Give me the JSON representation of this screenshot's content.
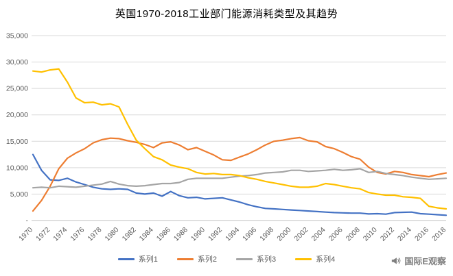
{
  "title": "英国1970-2018工业部门能源消耗类型及其趋势",
  "watermark": {
    "text": "国际E观察"
  },
  "chart_data": {
    "type": "line",
    "x": [
      1970,
      1971,
      1972,
      1973,
      1974,
      1975,
      1976,
      1977,
      1978,
      1979,
      1980,
      1981,
      1982,
      1983,
      1984,
      1985,
      1986,
      1987,
      1988,
      1989,
      1990,
      1991,
      1992,
      1993,
      1994,
      1995,
      1996,
      1997,
      1998,
      1999,
      2000,
      2001,
      2002,
      2003,
      2004,
      2005,
      2006,
      2007,
      2008,
      2009,
      2010,
      2011,
      2012,
      2013,
      2014,
      2015,
      2016,
      2017,
      2018
    ],
    "x_tick_labels": [
      "1970",
      "1972",
      "1974",
      "1976",
      "1978",
      "1980",
      "1982",
      "1984",
      "1986",
      "1988",
      "1990",
      "1992",
      "1994",
      "1996",
      "1998",
      "2000",
      "2002",
      "2004",
      "2006",
      "2008",
      "2010",
      "2012",
      "2014",
      "2016",
      "2018"
    ],
    "ylim": [
      0,
      35000
    ],
    "y_tick_interval": 5000,
    "y_tick_labels": [
      "-",
      "5,000",
      "10,000",
      "15,000",
      "20,000",
      "25,000",
      "30,000",
      "35,000"
    ],
    "grid": true,
    "legend_position": "bottom",
    "title": "英国1970-2018工业部门能源消耗类型及其趋势",
    "xlabel": "",
    "ylabel": "",
    "series": [
      {
        "name": "系列1",
        "color": "#4472C4",
        "values": [
          12500,
          9500,
          7700,
          7600,
          8000,
          7300,
          6800,
          6300,
          6000,
          5900,
          6000,
          5900,
          5200,
          5000,
          5200,
          4600,
          5500,
          4700,
          4300,
          4400,
          4100,
          4200,
          4300,
          3900,
          3500,
          3000,
          2600,
          2300,
          2200,
          2100,
          2000,
          1900,
          1800,
          1700,
          1600,
          1500,
          1450,
          1400,
          1400,
          1250,
          1300,
          1200,
          1500,
          1550,
          1600,
          1300,
          1200,
          1100,
          1000
        ]
      },
      {
        "name": "系列2",
        "color": "#ED7D31",
        "values": [
          1800,
          3800,
          6500,
          9800,
          11800,
          12800,
          13600,
          14700,
          15300,
          15600,
          15500,
          15100,
          14800,
          14400,
          13800,
          14700,
          14900,
          14300,
          13400,
          13800,
          13100,
          12400,
          11500,
          11400,
          12000,
          12600,
          13400,
          14300,
          15000,
          15200,
          15500,
          15700,
          15100,
          14900,
          14000,
          13600,
          12900,
          12100,
          11600,
          10100,
          9100,
          8800,
          9300,
          9100,
          8700,
          8500,
          8300,
          8700,
          9000
        ]
      },
      {
        "name": "系列3",
        "color": "#A5A5A5",
        "values": [
          6200,
          6300,
          6200,
          6500,
          6400,
          6300,
          6500,
          6700,
          6900,
          7400,
          6900,
          6600,
          6500,
          6600,
          6800,
          7000,
          7000,
          7200,
          7800,
          8000,
          8000,
          8000,
          8000,
          8200,
          8400,
          8500,
          8700,
          9000,
          9100,
          9200,
          9500,
          9500,
          9300,
          9400,
          9500,
          9700,
          9500,
          9600,
          9800,
          9100,
          9300,
          8900,
          8700,
          8500,
          8200,
          8000,
          7800,
          7900,
          8000
        ]
      },
      {
        "name": "系列4",
        "color": "#FFC000",
        "values": [
          28300,
          28100,
          28500,
          28700,
          26200,
          23200,
          22300,
          22400,
          21900,
          22100,
          21500,
          18200,
          15200,
          13600,
          12100,
          11500,
          10500,
          10100,
          9800,
          9100,
          8800,
          8900,
          8700,
          8700,
          8500,
          8100,
          7800,
          7400,
          7100,
          6800,
          6500,
          6300,
          6300,
          6500,
          7000,
          6800,
          6500,
          6200,
          6000,
          5300,
          5000,
          4800,
          4800,
          4500,
          4400,
          4200,
          2700,
          2400,
          2200
        ]
      }
    ],
    "colors": {
      "gridline": "#D9D9D9",
      "axis": "#BFBFBF",
      "tick_text": "#595959"
    }
  }
}
